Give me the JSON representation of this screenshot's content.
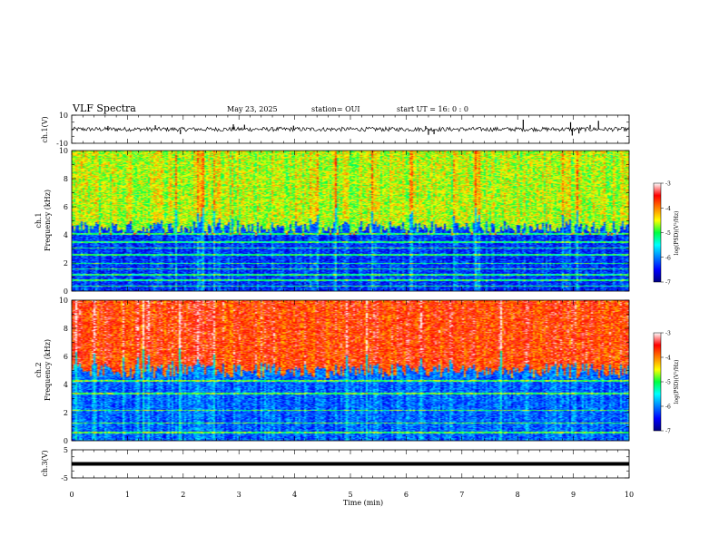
{
  "header": {
    "title": "VLF Spectra",
    "date": "May 23, 2025",
    "station": "station= OUI",
    "start": "start  UT =   16: 0  : 0"
  },
  "chart_data": [
    {
      "type": "line",
      "panel": "ch1-waveform",
      "ylabel": "ch.1(V)",
      "ylim": [
        -10,
        10
      ],
      "yticks": [
        "10",
        "-10"
      ],
      "x_units": "min",
      "xlim": [
        0,
        10
      ],
      "baseline": 0,
      "noise_amplitude": 1.5,
      "spikes": [
        {
          "x": 0.65,
          "y": 2.3
        },
        {
          "x": 1.5,
          "y": 2.8
        },
        {
          "x": 1.95,
          "y": -3.5
        },
        {
          "x": 2.9,
          "y": 3.5
        },
        {
          "x": 3.1,
          "y": 3.2
        },
        {
          "x": 3.98,
          "y": 2.5
        },
        {
          "x": 6.35,
          "y": 2.3
        },
        {
          "x": 6.4,
          "y": -4.0
        },
        {
          "x": 6.5,
          "y": -3.5
        },
        {
          "x": 8.1,
          "y": 6.8
        },
        {
          "x": 8.95,
          "y": 5.0
        },
        {
          "x": 8.98,
          "y": -4.5
        },
        {
          "x": 9.1,
          "y": -3.0
        },
        {
          "x": 9.3,
          "y": 3.0
        },
        {
          "x": 9.45,
          "y": 6.0
        }
      ]
    },
    {
      "type": "heatmap",
      "panel": "ch1-spectrogram",
      "ylabel": "ch.1\nFrequency (kHz)",
      "ylim": [
        0,
        10
      ],
      "yticks": [
        "0",
        "2",
        "4",
        "6",
        "8",
        "10"
      ],
      "xlim": [
        0,
        10
      ],
      "cutoff_khz": 4.5,
      "high_band_level": -4.6,
      "low_band_level": -6.3,
      "lines_khz": [
        0.4,
        0.8,
        1.2,
        1.6,
        2.0,
        2.6,
        3.1,
        3.5,
        4.1
      ],
      "colorbar": {
        "label": "log(PSD)(V²/Hz)",
        "range": [
          -7,
          -3
        ],
        "ticks": [
          "-3",
          "-4",
          "-5",
          "-6",
          "-7"
        ]
      }
    },
    {
      "type": "heatmap",
      "panel": "ch2-spectrogram",
      "ylabel": "ch.2\nFrequency (kHz)",
      "ylim": [
        0,
        10
      ],
      "yticks": [
        "0",
        "2",
        "4",
        "6",
        "8",
        "10"
      ],
      "xlim": [
        0,
        10
      ],
      "cutoff_khz": 5.0,
      "high_band_level": -3.7,
      "low_band_level": -6.1,
      "lines_khz": [
        0.6,
        1.3,
        2.2,
        3.4,
        4.3
      ],
      "colorbar": {
        "label": "log(PSD)(V²/Hz)",
        "range": [
          -7,
          -3
        ],
        "ticks": [
          "-3",
          "-4",
          "-5",
          "-6",
          "-7"
        ]
      }
    },
    {
      "type": "line",
      "panel": "ch3-waveform",
      "ylabel": "ch.3(V)",
      "ylim": [
        -5,
        5
      ],
      "yticks": [
        "5",
        "-5"
      ],
      "xlim": [
        0,
        10
      ],
      "constant_value": 0,
      "xlabel": "Time  (min)",
      "xticks": [
        "0",
        "1",
        "2",
        "3",
        "4",
        "5",
        "6",
        "7",
        "8",
        "9",
        "10"
      ]
    }
  ]
}
